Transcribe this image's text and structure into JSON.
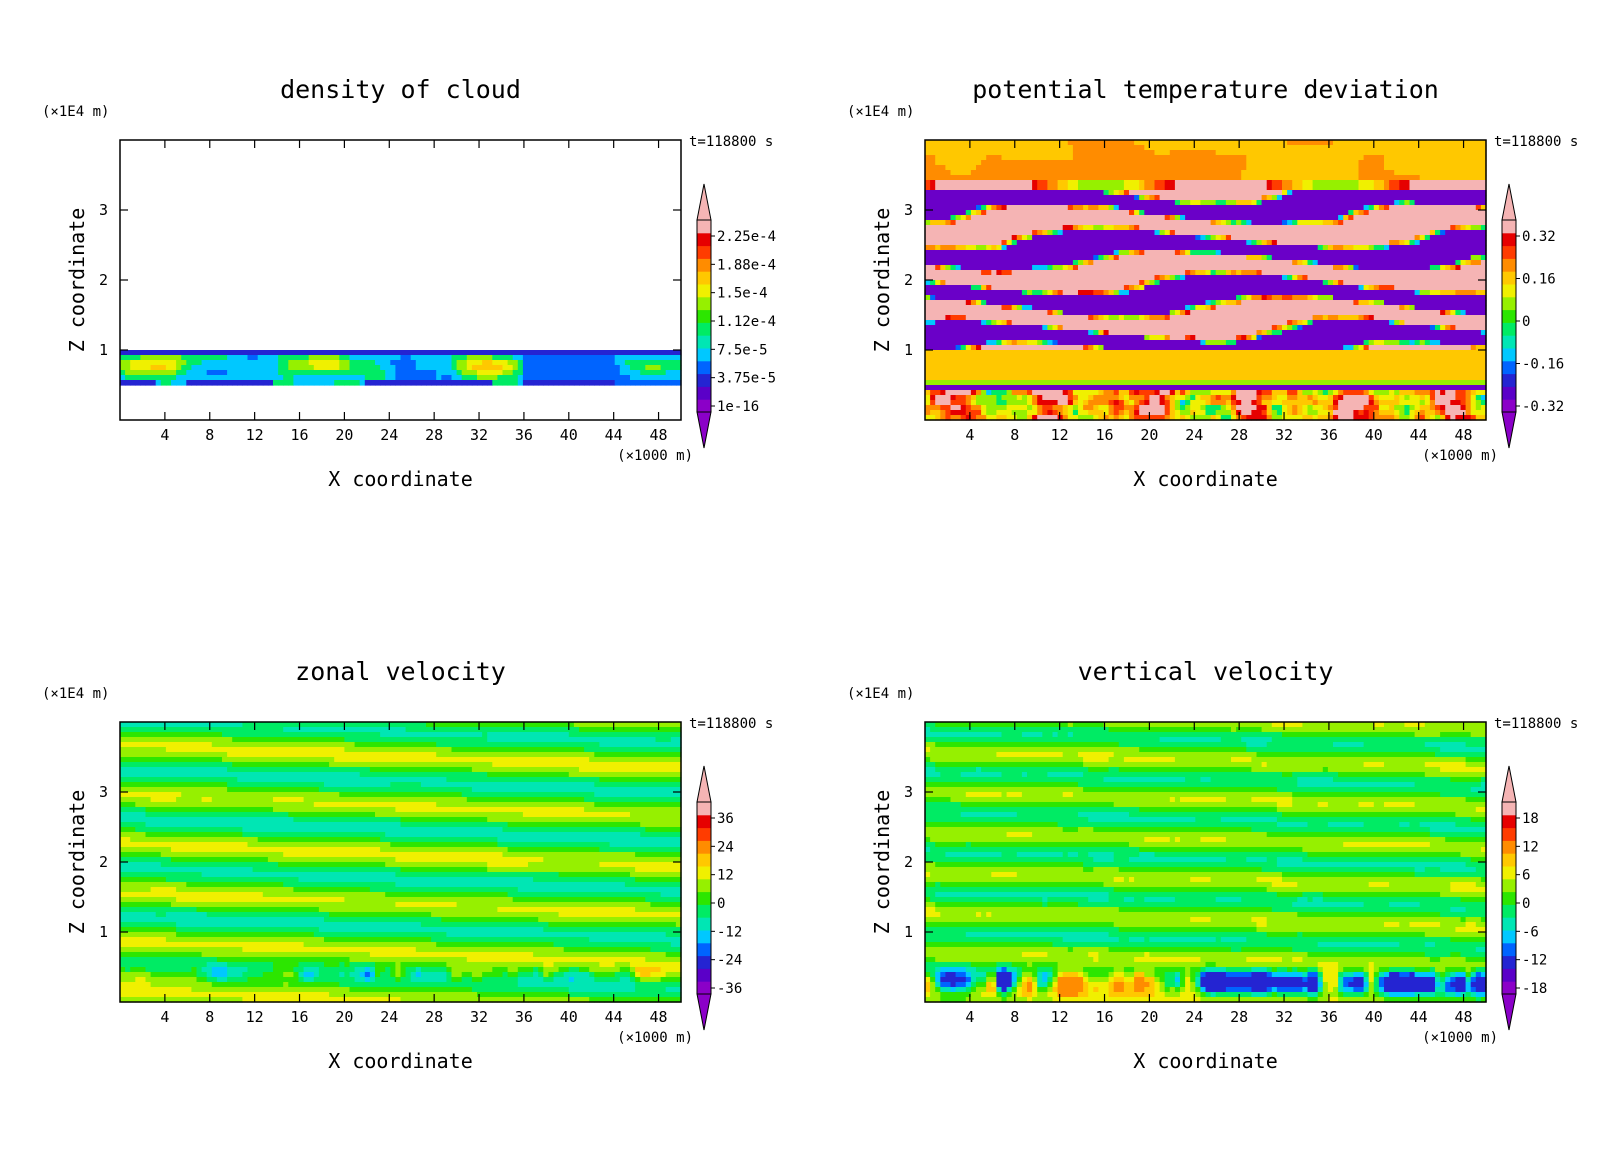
{
  "figure": {
    "background": "#ffffff",
    "time_label": "t=118800 s",
    "x_unit": "(×1000 m)",
    "z_unit": "(×1E4 m)",
    "xlabel": "X coordinate",
    "zlabel": "Z coordinate"
  },
  "chart_data": [
    {
      "type": "heatmap",
      "id": "cloud",
      "title": "density of cloud",
      "xlabel": "X coordinate",
      "ylabel": "Z coordinate",
      "x_unit": "(×1000 m)",
      "y_unit": "(×1E4 m)",
      "time_label": "t=118800 s",
      "xlim": [
        0,
        50
      ],
      "ylim": [
        0,
        4
      ],
      "x_ticks": [
        4,
        8,
        12,
        16,
        20,
        24,
        28,
        32,
        36,
        40,
        44,
        48
      ],
      "y_ticks": [
        1,
        2,
        3
      ],
      "colorbar_labels": [
        "2.25e-4",
        "1.88e-4",
        "1.5e-4",
        "1.12e-4",
        "7.5e-5",
        "3.75e-5",
        "1e-16"
      ],
      "field": "cloud",
      "grid": false
    },
    {
      "type": "heatmap",
      "id": "theta",
      "title": "potential temperature deviation",
      "xlabel": "X coordinate",
      "ylabel": "Z coordinate",
      "x_unit": "(×1000 m)",
      "y_unit": "(×1E4 m)",
      "time_label": "t=118800 s",
      "xlim": [
        0,
        50
      ],
      "ylim": [
        0,
        4
      ],
      "x_ticks": [
        4,
        8,
        12,
        16,
        20,
        24,
        28,
        32,
        36,
        40,
        44,
        48
      ],
      "y_ticks": [
        1,
        2,
        3
      ],
      "colorbar_labels": [
        "0.32",
        "0.16",
        "0",
        "-0.16",
        "-0.32"
      ],
      "field": "theta",
      "grid": false
    },
    {
      "type": "heatmap",
      "id": "zonal",
      "title": "zonal velocity",
      "xlabel": "X coordinate",
      "ylabel": "Z coordinate",
      "x_unit": "(×1000 m)",
      "y_unit": "(×1E4 m)",
      "time_label": "t=118800 s",
      "xlim": [
        0,
        50
      ],
      "ylim": [
        0,
        4
      ],
      "x_ticks": [
        4,
        8,
        12,
        16,
        20,
        24,
        28,
        32,
        36,
        40,
        44,
        48
      ],
      "y_ticks": [
        1,
        2,
        3
      ],
      "colorbar_labels": [
        "36",
        "24",
        "12",
        "0",
        "-12",
        "-24",
        "-36"
      ],
      "field": "zonal",
      "grid": false
    },
    {
      "type": "heatmap",
      "id": "vertical",
      "title": "vertical velocity",
      "xlabel": "X coordinate",
      "ylabel": "Z coordinate",
      "x_unit": "(×1000 m)",
      "y_unit": "(×1E4 m)",
      "time_label": "t=118800 s",
      "xlim": [
        0,
        50
      ],
      "ylim": [
        0,
        4
      ],
      "x_ticks": [
        4,
        8,
        12,
        16,
        20,
        24,
        28,
        32,
        36,
        40,
        44,
        48
      ],
      "y_ticks": [
        1,
        2,
        3
      ],
      "colorbar_labels": [
        "18",
        "12",
        "6",
        "0",
        "-6",
        "-12",
        "-18"
      ],
      "field": "vertical",
      "grid": false
    }
  ],
  "colors": {
    "palette": [
      "#8b00c8",
      "#5a00c8",
      "#2424d2",
      "#0064ff",
      "#00c8ff",
      "#00e6b4",
      "#00eb64",
      "#2ce600",
      "#96f000",
      "#f0f000",
      "#ffc800",
      "#ff8c00",
      "#ff3c00",
      "#e60000",
      "#f5b4b4"
    ]
  }
}
